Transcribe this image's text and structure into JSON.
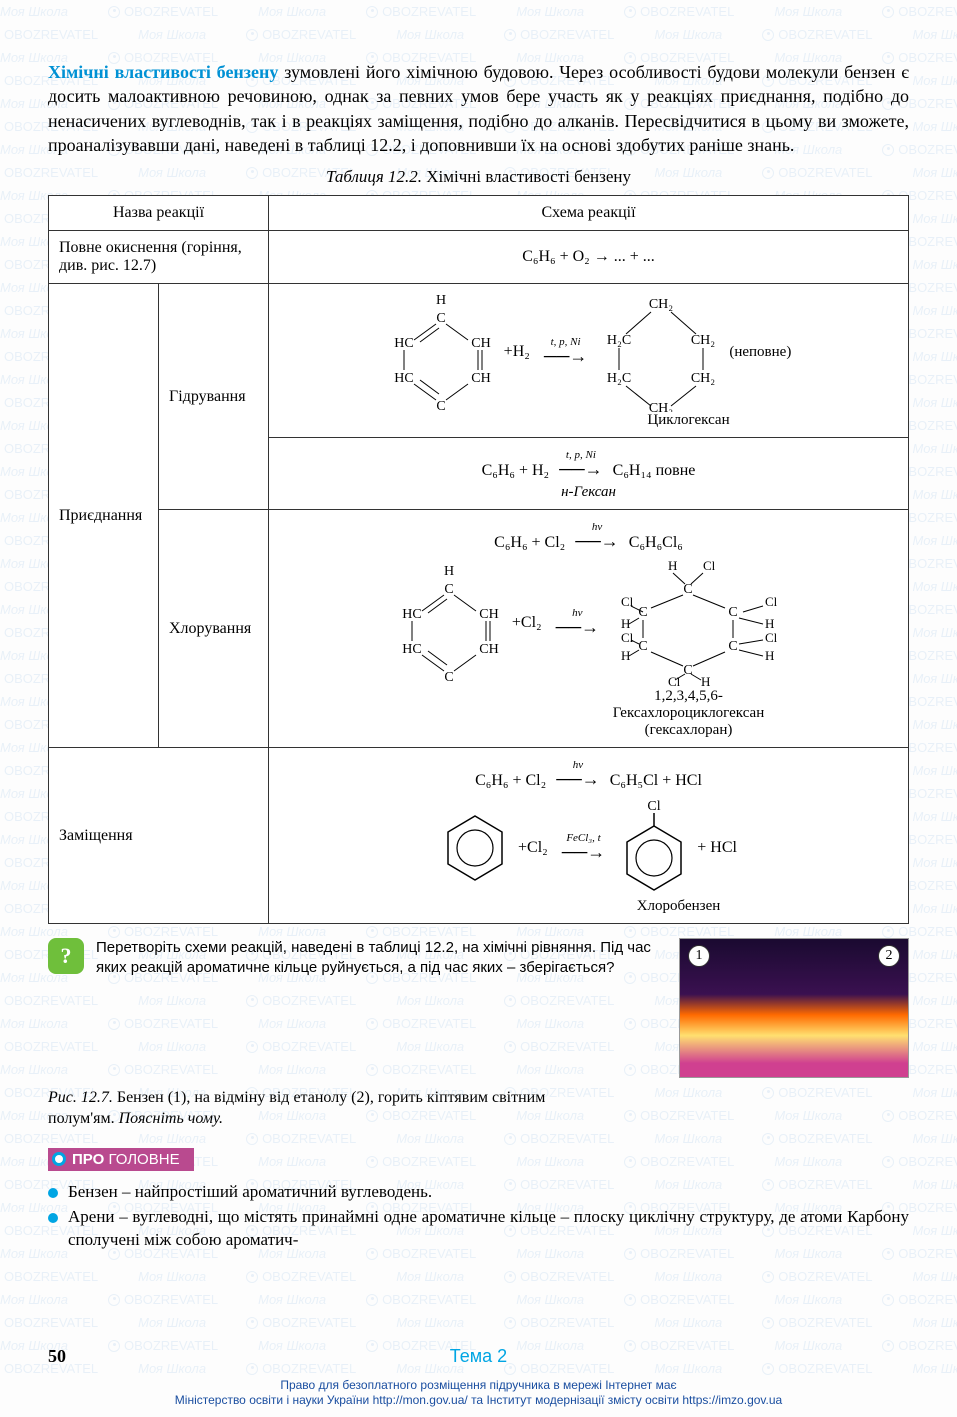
{
  "watermark_a": "Моя Школа",
  "watermark_b": "OBOZREVATEL",
  "intro": {
    "highlight": "Хімічні властивості бензену ",
    "rest": "зумовлені його хімічною будовою. Через особливості будови молекули бензен є досить малоактивною речовиною, однак за певних умов бере участь як у реакціях приєднання, подібно до ненасичених вуглеводнів, так і в реакціях заміщення, подібно до алканів. Пересвідчитися в цьому ви зможете, проаналізувавши дані, наведені в таблиці 12.2, і доповнивши їх на основі здобутих раніше знань."
  },
  "table_caption_i": "Таблиця 12.2.",
  "table_caption": " Хімічні властивості бензену",
  "th_name": "Назва реакції",
  "th_scheme": "Схема реакції",
  "row1_name": "Повне окиснення (горіння, див. рис. 12.7)",
  "row1_scheme": "C₆H₆ + O₂ → ... + ...",
  "row_attach": "Приєднання",
  "row_hydr": "Гідрування",
  "row_chlor": "Хлорування",
  "row_subst": "Заміщення",
  "hydr_partial_cond": "t, p, Ni",
  "hydr_partial_plus": "+H₂",
  "hydr_partial_note": "(неповне)",
  "hydr_partial_prod": "Циклогексан",
  "hydr_full_line": "C₆H₆ + H₂",
  "hydr_full_cond": "t, p, Ni",
  "hydr_full_right": "C₆H₁₄ повне",
  "hydr_full_prod": "н-Гексан",
  "chlor_add_line": "C₆H₆ + Cl₂",
  "chlor_add_cond": "hν",
  "chlor_add_right": "C₆H₆Cl₆",
  "chlor_add_plus": "+Cl₂",
  "chlor_add_prod1": "1,2,3,4,5,6-",
  "chlor_add_prod2": "Гексахлороциклогексан",
  "chlor_add_prod3": "(гексахлоран)",
  "subst_line": "C₆H₆ + Cl₂",
  "subst_cond": "hν",
  "subst_right": "C₆H₅Cl + HCl",
  "subst_plus": "+Cl₂",
  "subst_cond2": "FeCl₃, t",
  "subst_hcl": "+ HCl",
  "subst_prod": "Хлоробензен",
  "mol_labels": {
    "H": "H",
    "C": "C",
    "HC": "HC",
    "CH": "CH",
    "CH2": "CH₂",
    "H2C": "H₂C",
    "Cl": "Cl"
  },
  "question": "Перетворіть схеми реакцій, наведені в таблиці 12.2, на хімічні рівняння. Під час яких реакцій ароматичне кільце руйнується, а під час яких – зберігається?",
  "fig_caption_i": "Рис. 12.7.",
  "fig_caption": " Бензен (1), на відміну від етанолу (2), горить кіптявим світним полум'ям. ",
  "fig_caption_em": "Поясніть чому.",
  "fig_b1": "1",
  "fig_b2": "2",
  "header_a": "ПРО",
  "header_b": "ГОЛОВНЕ",
  "bullet1": "Бензен – найпростіший ароматичний вуглеводень.",
  "bullet2": "Арени – вуглеводні, що містять принаймні одне ароматичне кільце – плоску циклічну структуру, де атоми Карбону сполучені між собою ароматич-",
  "page_num": "50",
  "topic": "Тема 2",
  "footer1": "Право для безоплатного розміщення підручника в мережі Інтернет має",
  "footer2": "Міністерство освіти і науки України http://mon.gov.ua/ та Інститут модернізації змісту освіти https://imzo.gov.ua",
  "colors": {
    "highlight": "#0091d4",
    "accent": "#b94a8f",
    "bullet": "#00a5e3",
    "qicon": "#6fbf3b",
    "footer": "#1a4ea0"
  }
}
